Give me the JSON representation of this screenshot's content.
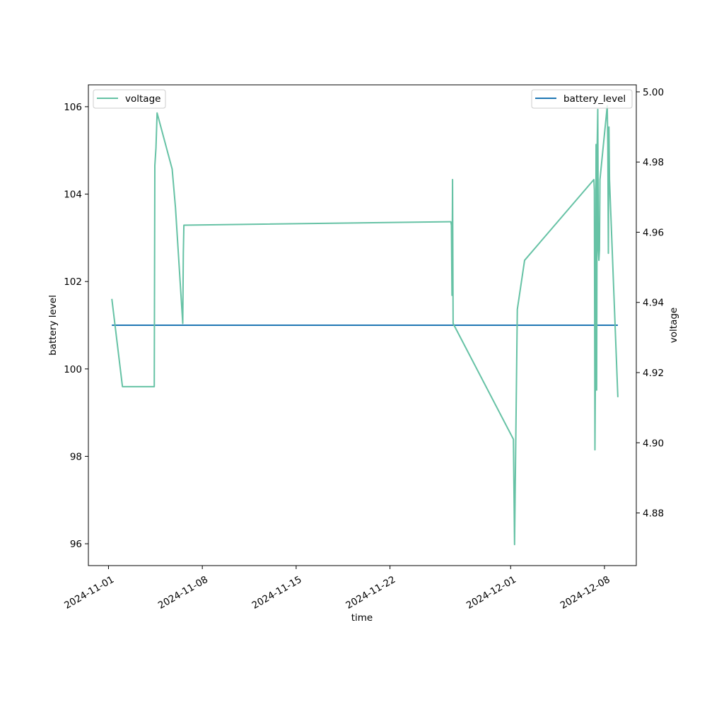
{
  "chart_data": {
    "type": "line",
    "xlabel": "time",
    "ylabel_left": "battery level",
    "ylabel_right": "voltage",
    "x_ticks": [
      "2024-11-01",
      "2024-11-08",
      "2024-11-15",
      "2024-11-22",
      "2024-12-01",
      "2024-12-08"
    ],
    "y_left": {
      "lim": [
        95.5,
        106.5
      ],
      "ticks": [
        96,
        98,
        100,
        102,
        104,
        106
      ],
      "tick_labels": [
        "96",
        "98",
        "100",
        "102",
        "104",
        "106"
      ]
    },
    "y_right": {
      "lim": [
        4.865,
        5.002
      ],
      "ticks": [
        4.88,
        4.9,
        4.92,
        4.94,
        4.96,
        4.98,
        5.0
      ],
      "tick_labels": [
        "4.88",
        "4.90",
        "4.92",
        "4.94",
        "4.96",
        "4.98",
        "5.00"
      ]
    },
    "x_range": [
      "2024-10-30T12:00",
      "2024-12-10T09:00"
    ],
    "grid": false,
    "series": [
      {
        "name": "battery_level",
        "axis": "left",
        "color": "#1f77b4",
        "legend_position": "upper-right",
        "x": [
          "2024-11-01T06:00",
          "2024-12-09T00:00"
        ],
        "y": [
          101.0,
          101.0
        ]
      },
      {
        "name": "voltage",
        "axis": "right",
        "color": "#66c2a5",
        "legend_position": "upper-left",
        "x": [
          "2024-11-01T06:00",
          "2024-11-02T01:00",
          "2024-11-04T10:00",
          "2024-11-04T11:00",
          "2024-11-04T13:00",
          "2024-11-04T15:00",
          "2024-11-05T18:00",
          "2024-11-06T00:00",
          "2024-11-06T13:00",
          "2024-11-06T14:00",
          "2024-11-06T15:00",
          "2024-11-26T13:00",
          "2024-11-26T14:00",
          "2024-11-26T15:00",
          "2024-11-26T16:00",
          "2024-11-26T17:00",
          "2024-12-01T05:00",
          "2024-12-01T07:00",
          "2024-12-01T12:00",
          "2024-12-02T01:00",
          "2024-12-07T05:00",
          "2024-12-07T06:00",
          "2024-12-07T07:00",
          "2024-12-07T08:00",
          "2024-12-07T09:00",
          "2024-12-07T10:00",
          "2024-12-07T11:00",
          "2024-12-07T12:00",
          "2024-12-07T13:00",
          "2024-12-07T14:00",
          "2024-12-07T15:00",
          "2024-12-07T16:00",
          "2024-12-08T05:00",
          "2024-12-08T06:00",
          "2024-12-08T07:00",
          "2024-12-08T08:00",
          "2024-12-08T09:00",
          "2024-12-09T00:00"
        ],
        "y": [
          4.941,
          4.916,
          4.916,
          4.979,
          4.984,
          4.994,
          4.978,
          4.967,
          4.934,
          4.954,
          4.962,
          4.963,
          4.962,
          4.942,
          4.975,
          4.934,
          4.901,
          4.871,
          4.938,
          4.952,
          4.975,
          4.972,
          4.898,
          4.925,
          4.985,
          4.915,
          4.985,
          4.995,
          4.955,
          4.952,
          4.955,
          4.975,
          4.996,
          4.985,
          4.954,
          4.99,
          4.975,
          4.913
        ]
      }
    ]
  }
}
